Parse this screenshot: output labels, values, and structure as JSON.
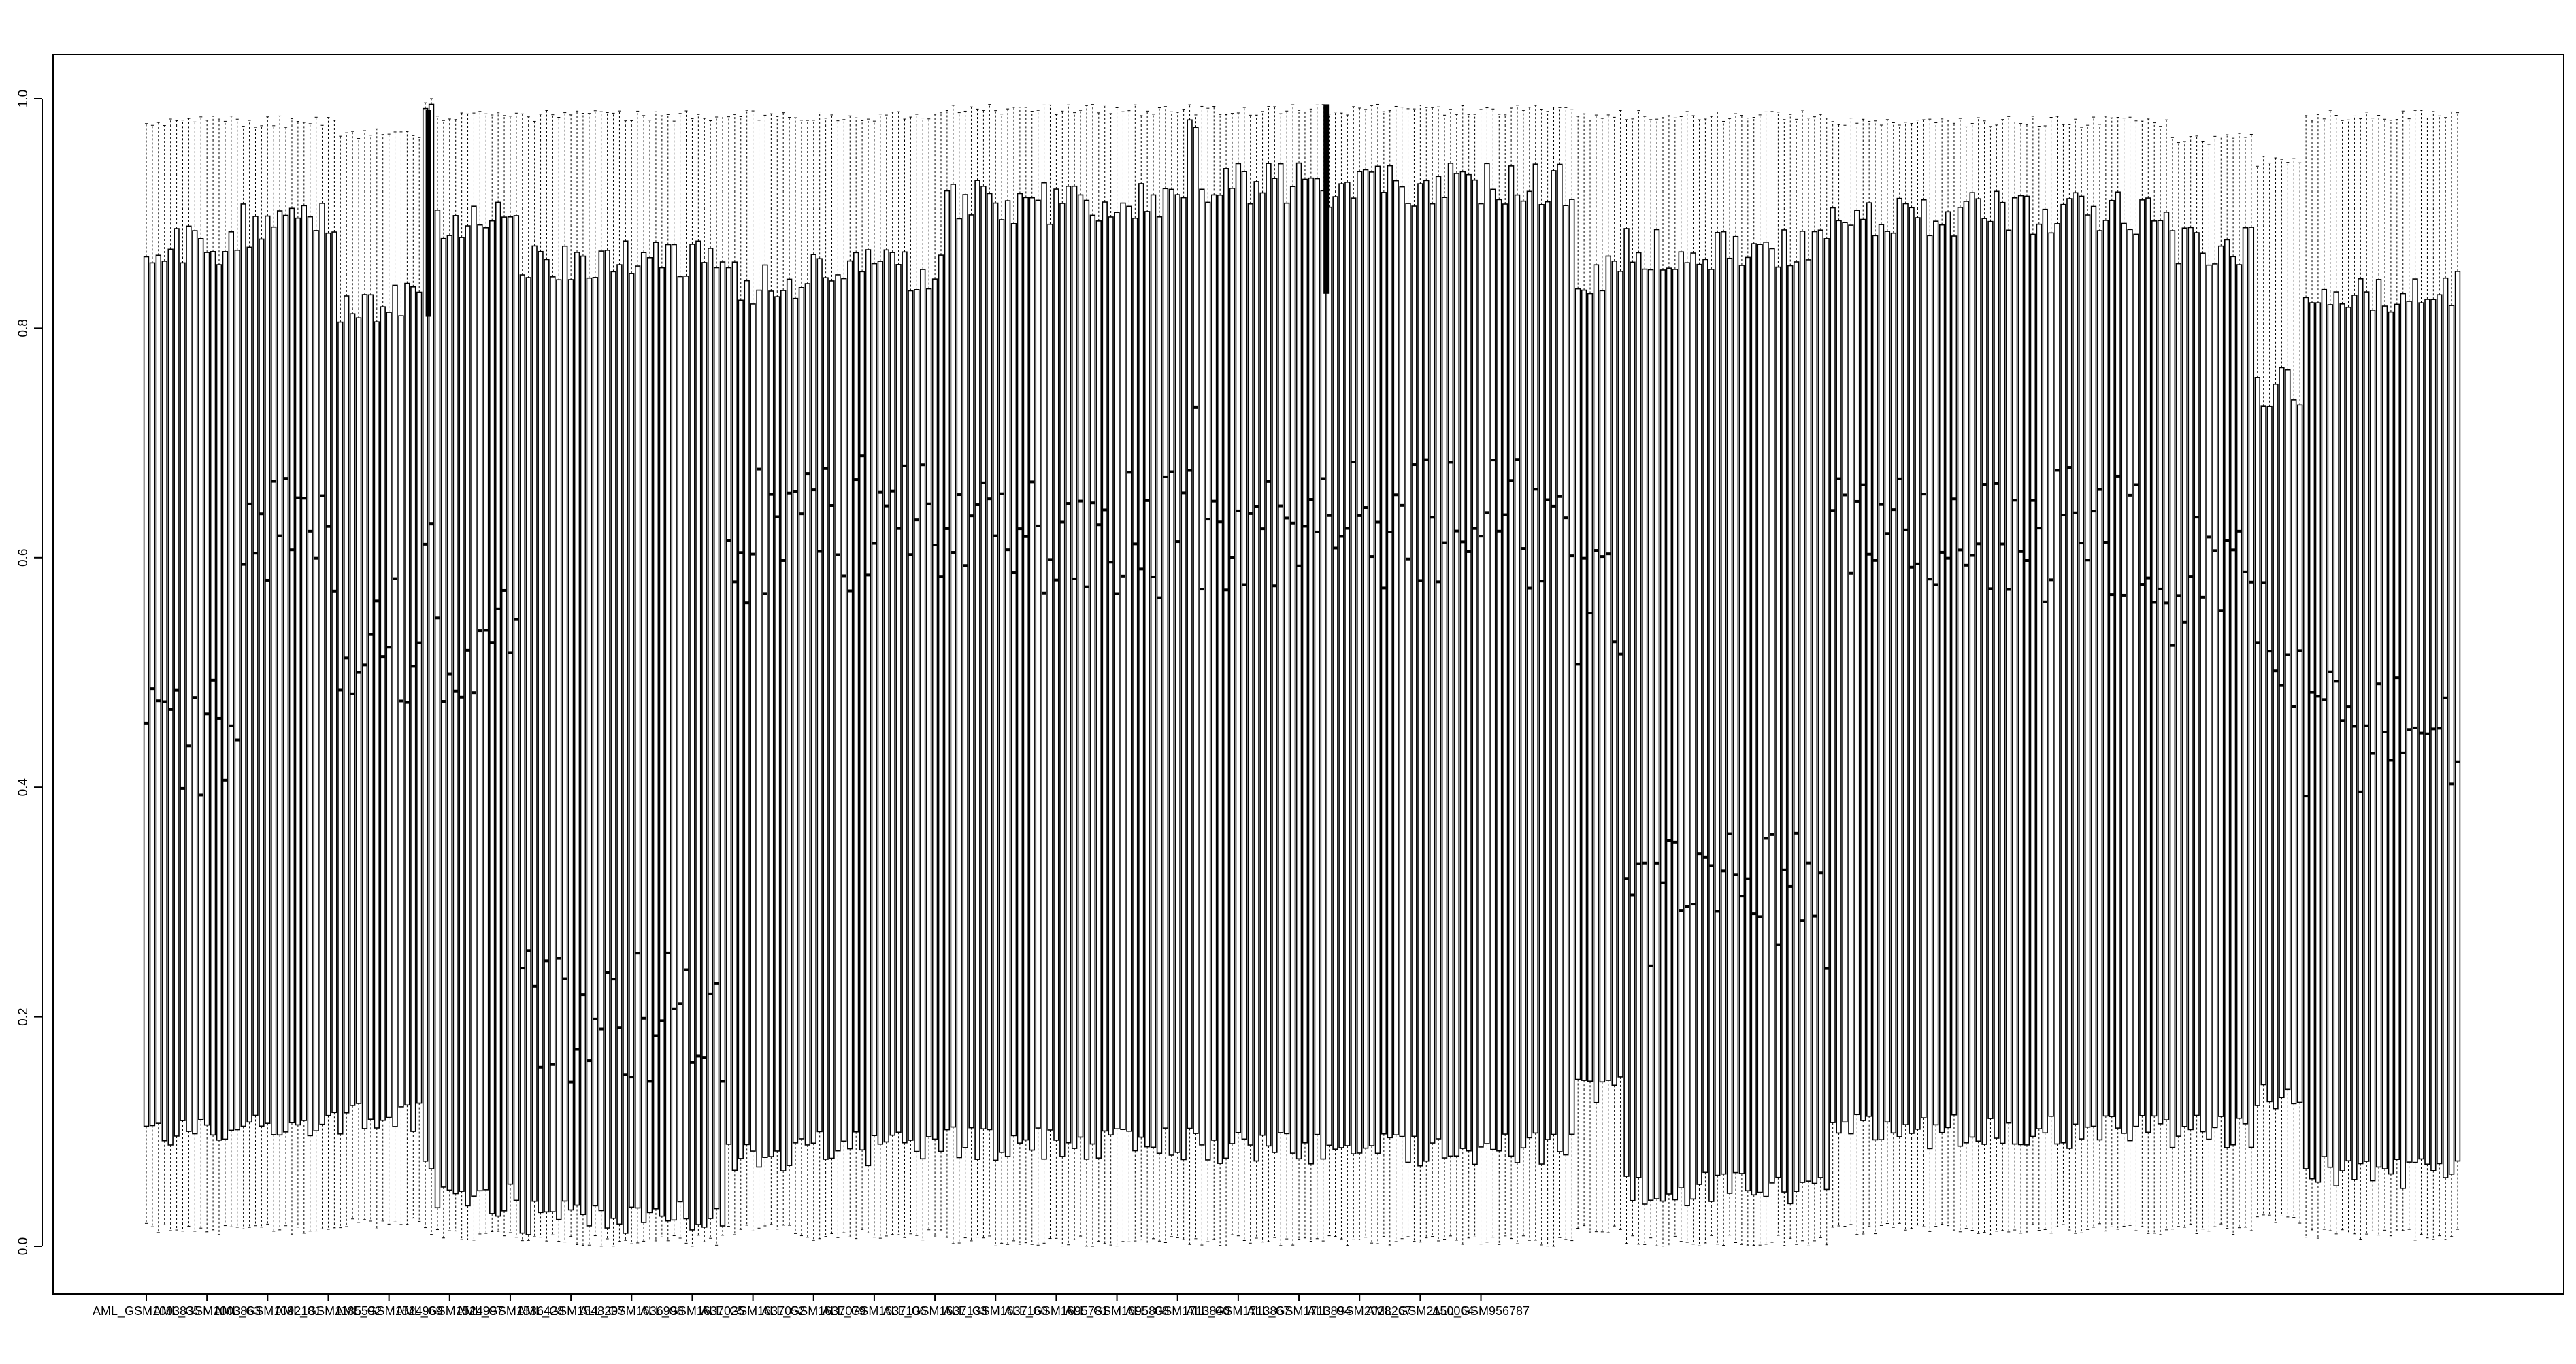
{
  "chart_data": {
    "type": "boxplot",
    "title": "",
    "xlabel": "",
    "ylabel": "",
    "ylim": [
      0,
      1
    ],
    "y_ticks": [
      0.0,
      0.2,
      0.4,
      0.6,
      0.8,
      1.0
    ],
    "y_tick_labels": [
      "0.0",
      "0.2",
      "0.4",
      "0.6",
      "0.8",
      "1.0"
    ],
    "grid": false,
    "legend": "none",
    "x_tick_labels": [
      "AML_GSM1003835",
      "AML_GSM1003863",
      "AML_GSM1092181",
      "AML_GSM1185592",
      "AML_GSM1524969",
      "AML_GSM1524997",
      "AML_GSM1536428",
      "AML_GSM1548207",
      "ALL_GSM1636998",
      "ALL_GSM1637025",
      "ALL_GSM1637052",
      "ALL_GSM1637079",
      "ALL_GSM1637106",
      "ALL_GSM1637133",
      "ALL_GSM1637160",
      "ALL_GSM1695781",
      "ALL_GSM1695808",
      "ALL_GSM1713840",
      "ALL_GSM1713867",
      "ALL_GSM1713894",
      "ALL_GSM2028267",
      "AML_GSM2150064",
      "ALL_GSM956787"
    ],
    "boxes_per_label": 10,
    "segments": [
      {
        "count": 16,
        "q1": 0.1,
        "median": 0.44,
        "q3": 0.87,
        "min": 0.01,
        "max": 0.985
      },
      {
        "count": 16,
        "q1": 0.105,
        "median": 0.63,
        "q3": 0.89,
        "min": 0.01,
        "max": 0.985
      },
      {
        "count": 14,
        "q1": 0.11,
        "median": 0.53,
        "q3": 0.82,
        "min": 0.015,
        "max": 0.975
      },
      {
        "count": 2,
        "q1": 0.08,
        "median": 0.6,
        "q3": 0.98,
        "min": 0.01,
        "max": 0.99
      },
      {
        "count": 14,
        "q1": 0.04,
        "median": 0.52,
        "q3": 0.89,
        "min": 0.005,
        "max": 0.99
      },
      {
        "count": 34,
        "q1": 0.025,
        "median": 0.2,
        "q3": 0.86,
        "min": 0.0,
        "max": 0.99
      },
      {
        "count": 12,
        "q1": 0.08,
        "median": 0.62,
        "q3": 0.84,
        "min": 0.01,
        "max": 0.99
      },
      {
        "count": 24,
        "q1": 0.085,
        "median": 0.63,
        "q3": 0.85,
        "min": 0.005,
        "max": 0.99
      },
      {
        "count": 40,
        "q1": 0.09,
        "median": 0.62,
        "q3": 0.91,
        "min": 0.0,
        "max": 0.995
      },
      {
        "count": 2,
        "q1": 0.09,
        "median": 0.7,
        "q3": 0.99,
        "min": 0.0,
        "max": 0.995
      },
      {
        "count": 62,
        "q1": 0.085,
        "median": 0.63,
        "q3": 0.925,
        "min": 0.0,
        "max": 0.995
      },
      {
        "count": 8,
        "q1": 0.14,
        "median": 0.55,
        "q3": 0.85,
        "min": 0.01,
        "max": 0.99
      },
      {
        "count": 34,
        "q1": 0.05,
        "median": 0.3,
        "q3": 0.87,
        "min": 0.0,
        "max": 0.99
      },
      {
        "count": 56,
        "q1": 0.1,
        "median": 0.62,
        "q3": 0.9,
        "min": 0.01,
        "max": 0.985
      },
      {
        "count": 14,
        "q1": 0.1,
        "median": 0.58,
        "q3": 0.87,
        "min": 0.01,
        "max": 0.97
      },
      {
        "count": 8,
        "q1": 0.13,
        "median": 0.52,
        "q3": 0.75,
        "min": 0.02,
        "max": 0.95
      },
      {
        "count": 26,
        "q1": 0.065,
        "median": 0.45,
        "q3": 0.83,
        "min": 0.005,
        "max": 0.99
      }
    ],
    "thick_markers": [
      {
        "after_box": 46,
        "y_low": 0.81,
        "y_high": 0.99
      },
      {
        "after_box": 194,
        "y_low": 0.83,
        "y_high": 0.995
      }
    ]
  }
}
